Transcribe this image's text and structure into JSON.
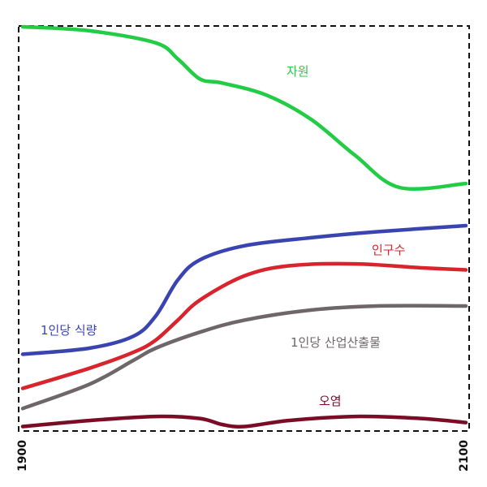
{
  "chart_data": {
    "type": "line",
    "title": "",
    "xlabel": "",
    "ylabel": "",
    "x_ticks": [
      "1900",
      "2100"
    ],
    "xlim": [
      1900,
      2100
    ],
    "ylim": [
      0,
      100
    ],
    "grid": false,
    "series": [
      {
        "name": "자원",
        "color": "#22cc44",
        "points": [
          [
            1900,
            100
          ],
          [
            1930,
            99
          ],
          [
            1960,
            96
          ],
          [
            1970,
            92
          ],
          [
            1980,
            87
          ],
          [
            1990,
            86
          ],
          [
            2010,
            83
          ],
          [
            2030,
            77
          ],
          [
            2050,
            68
          ],
          [
            2070,
            60
          ],
          [
            2100,
            61
          ]
        ]
      },
      {
        "name": "1인당 식량",
        "color": "#3a44b0",
        "points": [
          [
            1900,
            18.5
          ],
          [
            1930,
            20
          ],
          [
            1950,
            23
          ],
          [
            1960,
            28
          ],
          [
            1970,
            37
          ],
          [
            1980,
            42
          ],
          [
            2000,
            45.5
          ],
          [
            2030,
            47.5
          ],
          [
            2060,
            49
          ],
          [
            2100,
            50.5
          ]
        ]
      },
      {
        "name": "인구수",
        "color": "#d9232d",
        "points": [
          [
            1900,
            10
          ],
          [
            1930,
            15
          ],
          [
            1950,
            19
          ],
          [
            1960,
            22
          ],
          [
            1970,
            27
          ],
          [
            1980,
            32
          ],
          [
            2000,
            38
          ],
          [
            2020,
            40.5
          ],
          [
            2050,
            41
          ],
          [
            2080,
            40
          ],
          [
            2100,
            39.5
          ]
        ]
      },
      {
        "name": "1인당 산업산출물",
        "color": "#6e6668",
        "points": [
          [
            1900,
            5
          ],
          [
            1930,
            11
          ],
          [
            1950,
            17
          ],
          [
            1960,
            20
          ],
          [
            1980,
            24
          ],
          [
            2000,
            27
          ],
          [
            2030,
            29.5
          ],
          [
            2060,
            30.5
          ],
          [
            2100,
            30.5
          ]
        ]
      },
      {
        "name": "오염",
        "color": "#7a0c25",
        "points": [
          [
            1900,
            0.5
          ],
          [
            1930,
            2
          ],
          [
            1960,
            3
          ],
          [
            1980,
            2.5
          ],
          [
            1990,
            1
          ],
          [
            2000,
            0.5
          ],
          [
            2020,
            2
          ],
          [
            2050,
            3
          ],
          [
            2080,
            2.5
          ],
          [
            2100,
            1.5
          ]
        ]
      }
    ],
    "annotations": [
      "자원",
      "1인당 식량",
      "인구수",
      "1인당 산업산출물",
      "오염"
    ]
  }
}
